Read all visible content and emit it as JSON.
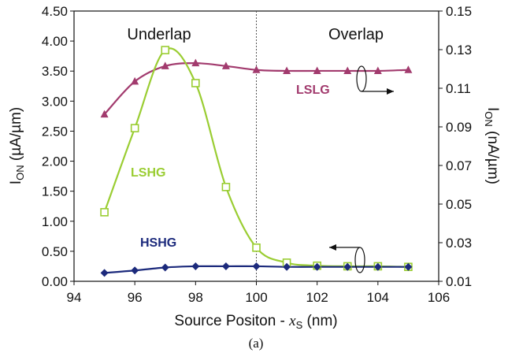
{
  "chart_data": {
    "type": "line",
    "caption": "(a)",
    "xlabel": "Source Positon - x_S (nm)",
    "xlabel_parts": [
      "Source Positon - ",
      "x",
      "S",
      " (nm)"
    ],
    "ylabel_left_parts": [
      "I",
      "ON",
      " (µA/µm)"
    ],
    "ylabel_right_parts": [
      "I",
      "ON",
      " (nA/µm)"
    ],
    "xlim": [
      94,
      106
    ],
    "ylim_left": [
      0,
      4.5
    ],
    "ylim_right": [
      0.01,
      0.15
    ],
    "x_ticks": [
      "94",
      "96",
      "98",
      "100",
      "102",
      "104",
      "106"
    ],
    "y_left_ticks": [
      "0.00",
      "0.50",
      "1.00",
      "1.50",
      "2.00",
      "2.50",
      "3.00",
      "3.50",
      "4.00",
      "4.50"
    ],
    "y_right_ticks": [
      "0.01",
      "0.03",
      "0.05",
      "0.07",
      "0.09",
      "0.11",
      "0.13",
      "0.15"
    ],
    "divider_x": 100,
    "regions": [
      "Underlap",
      "Overlap"
    ],
    "series": [
      {
        "name": "LSLG",
        "axis": "right",
        "marker": "triangle",
        "color": "#a23b6e",
        "x": [
          95,
          96,
          97,
          98,
          99,
          100,
          101,
          102,
          103,
          104,
          105
        ],
        "y": [
          0.0965,
          0.1135,
          0.1215,
          0.123,
          0.1215,
          0.1195,
          0.119,
          0.119,
          0.119,
          0.119,
          0.1195
        ]
      },
      {
        "name": "LSHG",
        "axis": "left",
        "marker": "square",
        "color": "#9acd32",
        "x": [
          95,
          96,
          97,
          98,
          99,
          100,
          101,
          102,
          103,
          104,
          105
        ],
        "y": [
          1.15,
          2.55,
          3.85,
          3.3,
          1.57,
          0.56,
          0.31,
          0.26,
          0.25,
          0.25,
          0.24
        ]
      },
      {
        "name": "HSHG",
        "axis": "left",
        "marker": "diamond",
        "color": "#1c2a7c",
        "x": [
          95,
          96,
          97,
          98,
          99,
          100,
          101,
          102,
          103,
          104,
          105
        ],
        "y": [
          0.14,
          0.18,
          0.23,
          0.25,
          0.25,
          0.25,
          0.24,
          0.24,
          0.24,
          0.24,
          0.24
        ]
      }
    ]
  }
}
